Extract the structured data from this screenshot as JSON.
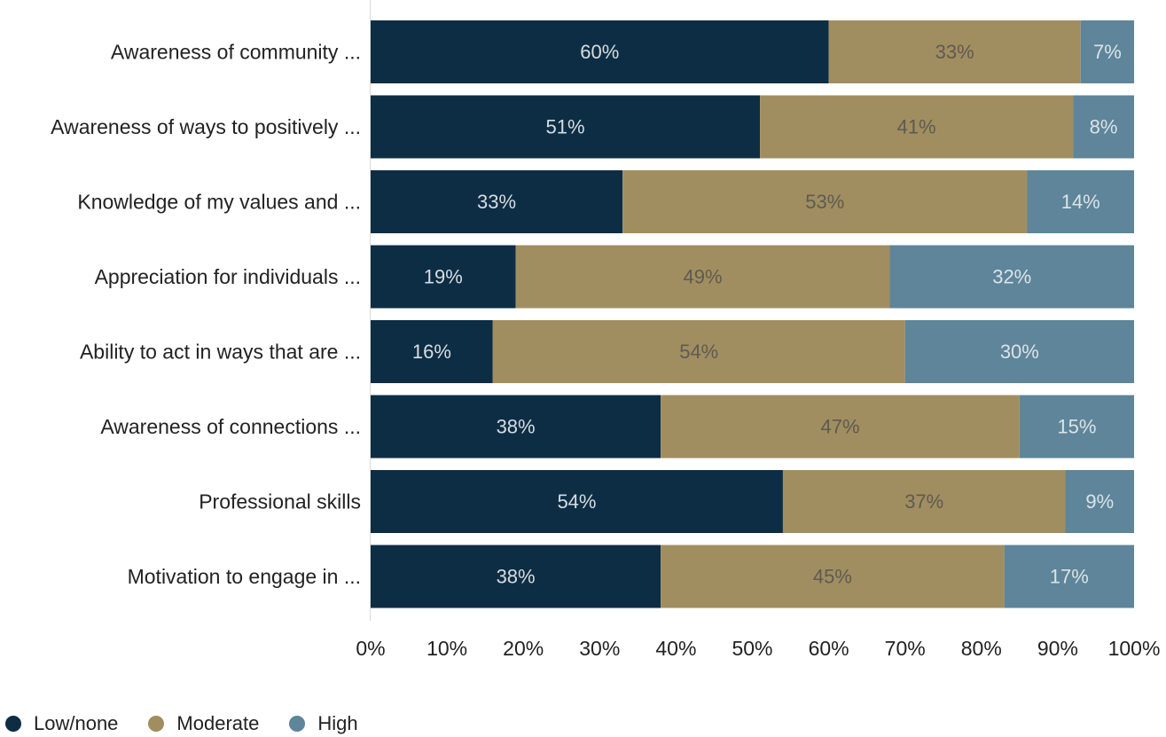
{
  "chart_data": {
    "type": "bar",
    "orientation": "horizontal",
    "stacked": true,
    "categories": [
      "Awareness of community ...",
      "Awareness of ways to positively ...",
      "Knowledge of my values and ...",
      "Appreciation for individuals ...",
      "Ability to act in ways that are ...",
      "Awareness of connections ...",
      "Professional skills",
      "Motivation to engage in ..."
    ],
    "series": [
      {
        "name": "Low/none",
        "color": "#0d2d44",
        "label_color": "#d7dde2",
        "values": [
          60,
          51,
          33,
          19,
          16,
          38,
          54,
          38
        ],
        "labels": [
          "60%",
          "51%",
          "33%",
          "19%",
          "16%",
          "38%",
          "54%",
          "38%"
        ]
      },
      {
        "name": "Moderate",
        "color": "#a18e60",
        "label_color": "#5e5a52",
        "values": [
          33,
          41,
          53,
          49,
          54,
          47,
          37,
          45
        ],
        "labels": [
          "33%",
          "41%",
          "53%",
          "49%",
          "54%",
          "47%",
          "37%",
          "45%"
        ]
      },
      {
        "name": "High",
        "color": "#5e8599",
        "label_color": "#dbe3e8",
        "values": [
          7,
          8,
          14,
          32,
          30,
          15,
          9,
          17
        ],
        "labels": [
          "7%",
          "8%",
          "14%",
          "32%",
          "30%",
          "15%",
          "9%",
          "17%"
        ]
      }
    ],
    "xlim": [
      0,
      100
    ],
    "x_ticks": [
      "0%",
      "10%",
      "20%",
      "30%",
      "40%",
      "50%",
      "60%",
      "70%",
      "80%",
      "90%",
      "100%"
    ],
    "grid": false,
    "legend_position": "bottom-left"
  }
}
